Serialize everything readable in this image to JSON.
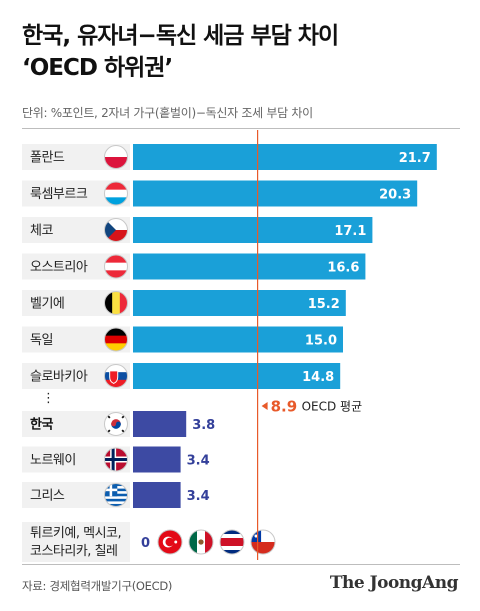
{
  "header": {
    "title_line1": "한국, 유자녀−독신 세금 부담 차이",
    "title_line2": "‘OECD 하위권’",
    "subtitle": "단위: %포인트, 2자녀 가구(홑벌이)−독신자 조세 부담 차이"
  },
  "footer": {
    "source": "자료: 경제협력개발기구(OECD)",
    "logo": "The JoongAng"
  },
  "colors": {
    "top_bar": "#1aa0d8",
    "korea_group_bar": "#3d4aa3",
    "average_line": "#e85a2a"
  },
  "chart_data": {
    "type": "bar",
    "orientation": "horizontal",
    "xlim": [
      0,
      23
    ],
    "average": {
      "value": 8.9,
      "label": "OECD 평균"
    },
    "ellipsis": "⋮",
    "categories": [
      "폴란드",
      "룩셈부르크",
      "체코",
      "오스트리아",
      "벨기에",
      "독일",
      "슬로바키아",
      "한국",
      "노르웨이",
      "그리스",
      "튀르키예, 멕시코, 코스타리카, 칠레"
    ],
    "values": [
      21.7,
      20.3,
      17.1,
      16.6,
      15.2,
      15.0,
      14.8,
      3.8,
      3.4,
      3.4,
      0
    ],
    "value_labels": [
      "21.7",
      "20.3",
      "17.1",
      "16.6",
      "15.2",
      "15.0",
      "14.8",
      "3.8",
      "3.4",
      "3.4",
      "0"
    ],
    "last_label_lines": [
      "튀르키예, 멕시코,",
      "코스타리카, 칠레"
    ],
    "flags": [
      "poland",
      "luxembourg",
      "czech",
      "austria",
      "belgium",
      "germany",
      "slovakia",
      "korea",
      "norway",
      "greece"
    ],
    "last_flags": [
      "turkey",
      "mexico",
      "costa-rica",
      "chile"
    ],
    "highlight": "한국"
  }
}
